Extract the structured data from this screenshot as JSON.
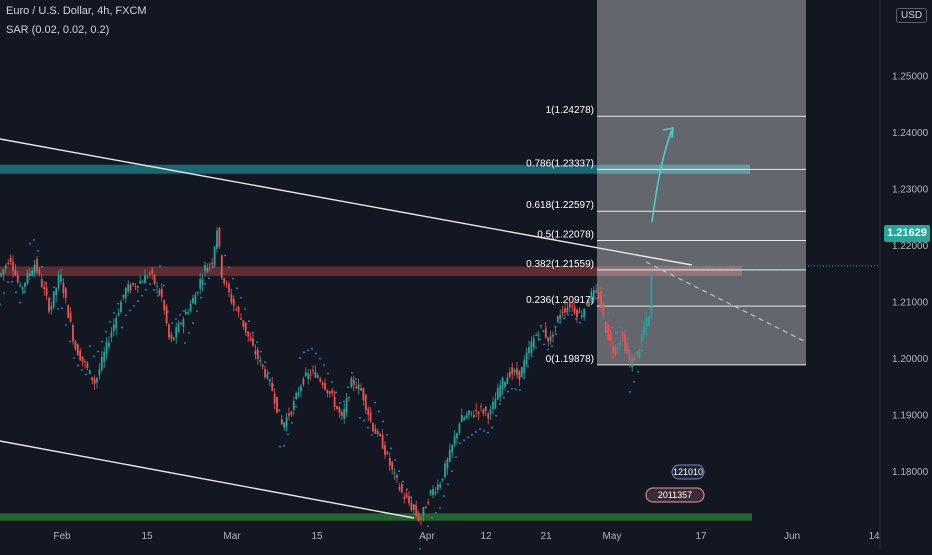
{
  "header": {
    "title": "Euro / U.S. Dollar, 4h, FXCM",
    "indicator": "SAR (0.02, 0.02, 0.2)",
    "currency": "USD"
  },
  "last_price": "1.21629",
  "colors": {
    "background": "#131722",
    "up": "#26a69a",
    "down": "#ef5350",
    "sar": "#2196f3",
    "resistance_zone": "#ef5350",
    "target_zone": "#1a8c94",
    "support_zone": "#2e7d32",
    "fib_box": "#ffffff"
  },
  "chart_data": {
    "type": "candlestick",
    "title": "Euro / U.S. Dollar, 4h, FXCM",
    "xlabel": "",
    "ylabel": "",
    "ylim": [
      1.1715,
      1.2545
    ],
    "y_ticks": [
      "1.18000",
      "1.19000",
      "1.20000",
      "1.21000",
      "1.22000",
      "1.23000",
      "1.24000",
      "1.25000"
    ],
    "x_ticks": [
      "Feb",
      "15",
      "Mar",
      "15",
      "Apr",
      "12",
      "21",
      "May",
      "17",
      "Jun",
      "14"
    ],
    "price_path": [
      [
        0,
        1.2145
      ],
      [
        10,
        1.218
      ],
      [
        20,
        1.212
      ],
      [
        35,
        1.2168
      ],
      [
        50,
        1.2085
      ],
      [
        60,
        1.215
      ],
      [
        75,
        1.202
      ],
      [
        95,
        1.1955
      ],
      [
        110,
        1.204
      ],
      [
        125,
        1.212
      ],
      [
        140,
        1.2135
      ],
      [
        150,
        1.215
      ],
      [
        162,
        1.2105
      ],
      [
        170,
        1.2025
      ],
      [
        180,
        1.206
      ],
      [
        195,
        1.211
      ],
      [
        205,
        1.216
      ],
      [
        212,
        1.217
      ],
      [
        217,
        1.223
      ],
      [
        222,
        1.2145
      ],
      [
        232,
        1.21
      ],
      [
        242,
        1.2065
      ],
      [
        252,
        1.202
      ],
      [
        262,
        1.1985
      ],
      [
        272,
        1.1945
      ],
      [
        282,
        1.188
      ],
      [
        292,
        1.191
      ],
      [
        302,
        1.196
      ],
      [
        312,
        1.1975
      ],
      [
        322,
        1.196
      ],
      [
        332,
        1.193
      ],
      [
        342,
        1.189
      ],
      [
        352,
        1.196
      ],
      [
        362,
        1.194
      ],
      [
        372,
        1.188
      ],
      [
        382,
        1.185
      ],
      [
        392,
        1.18
      ],
      [
        402,
        1.176
      ],
      [
        412,
        1.1735
      ],
      [
        420,
        1.1712
      ],
      [
        430,
        1.176
      ],
      [
        440,
        1.178
      ],
      [
        450,
        1.183
      ],
      [
        460,
        1.189
      ],
      [
        470,
        1.19
      ],
      [
        480,
        1.191
      ],
      [
        490,
        1.19
      ],
      [
        500,
        1.195
      ],
      [
        510,
        1.1975
      ],
      [
        520,
        1.197
      ],
      [
        530,
        1.202
      ],
      [
        540,
        1.2055
      ],
      [
        550,
        1.203
      ],
      [
        560,
        1.208
      ],
      [
        570,
        1.2095
      ],
      [
        580,
        1.2075
      ],
      [
        590,
        1.211
      ],
      [
        598,
        1.2115
      ],
      [
        606,
        1.205
      ],
      [
        614,
        1.201
      ],
      [
        622,
        1.204
      ],
      [
        630,
        1.199
      ],
      [
        638,
        1.201
      ],
      [
        644,
        1.2055
      ],
      [
        649,
        1.207
      ],
      [
        652,
        1.2163
      ]
    ],
    "fibonacci": [
      {
        "label": "0(1.19878)",
        "value": 1.19878
      },
      {
        "label": "0.236(1.20917)",
        "value": 1.20917
      },
      {
        "label": "0.382(1.21559)",
        "value": 1.21559
      },
      {
        "label": "0.5(1.22078)",
        "value": 1.22078
      },
      {
        "label": "0.618(1.22597)",
        "value": 1.22597
      },
      {
        "label": "0.786(1.23337)",
        "value": 1.23337
      },
      {
        "label": "1(1.24278)",
        "value": 1.24278
      }
    ],
    "zones": [
      {
        "name": "resistance",
        "from": 1.2145,
        "to": 1.2162
      },
      {
        "name": "target",
        "from": 1.2326,
        "to": 1.2342
      },
      {
        "name": "support",
        "from": 1.1712,
        "to": 1.1725
      }
    ],
    "annotation_badges": [
      "121010",
      "2011357"
    ],
    "grid": false,
    "legend": "none"
  }
}
